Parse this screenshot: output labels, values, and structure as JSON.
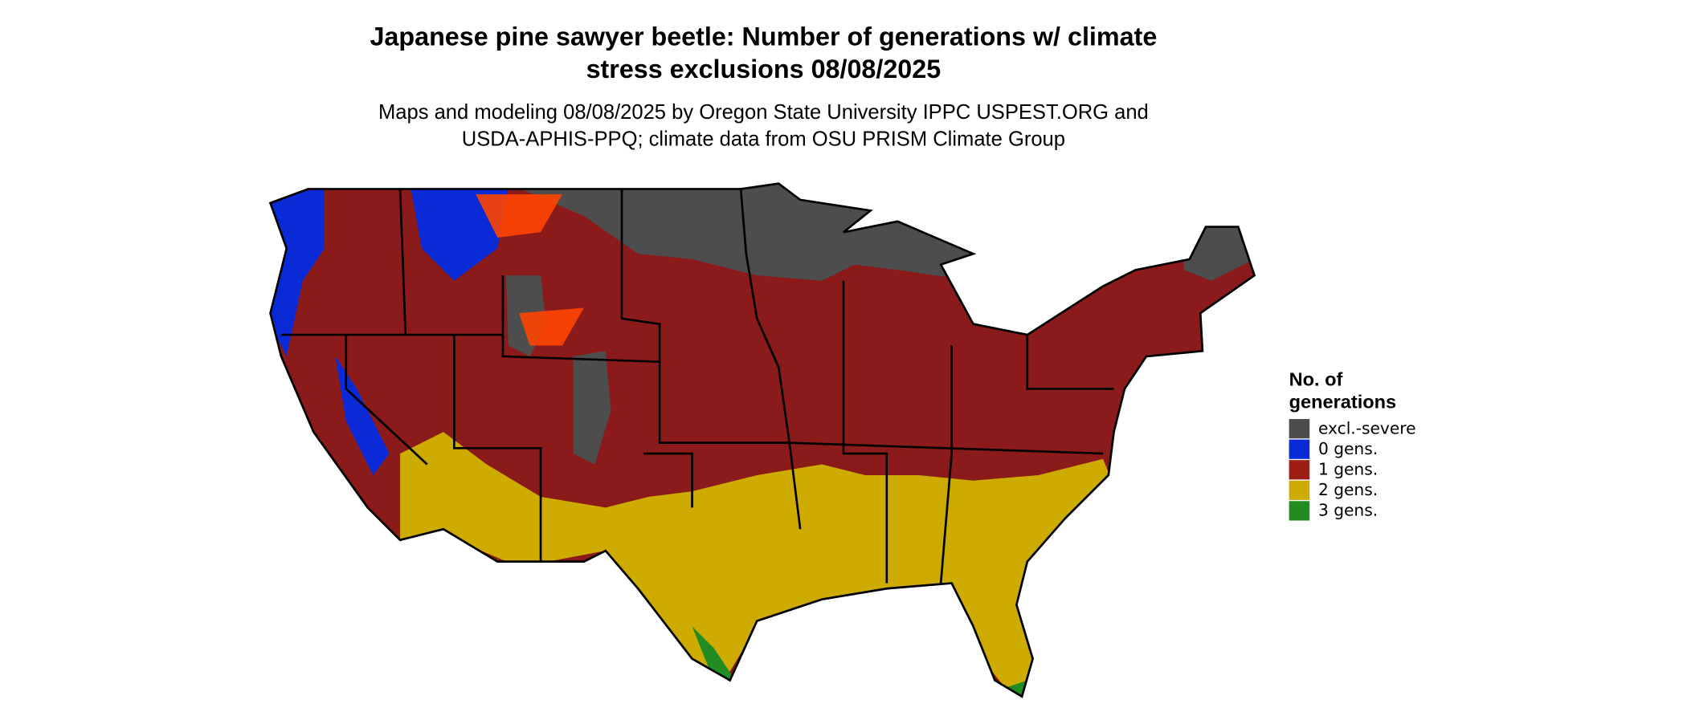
{
  "title_lines": [
    "Japanese pine sawyer beetle: Number of generations w/ climate",
    "stress exclusions 08/08/2025"
  ],
  "subtitle_lines": [
    "Maps and modeling 08/08/2025 by Oregon State University IPPC USPEST.ORG and",
    "USDA-APHIS-PPQ; climate data from OSU PRISM Climate Group"
  ],
  "legend": {
    "title_lines": [
      "No. of",
      "generations"
    ],
    "items": [
      {
        "label": "excl.-severe",
        "color": "#4d4d4d"
      },
      {
        "label": "0 gens.",
        "color": "#0a2ad6"
      },
      {
        "label": "1 gens.",
        "color": "#9e1e14"
      },
      {
        "label": "2 gens.",
        "color": "#cdab00"
      },
      {
        "label": "3 gens.",
        "color": "#228b22"
      }
    ]
  }
}
